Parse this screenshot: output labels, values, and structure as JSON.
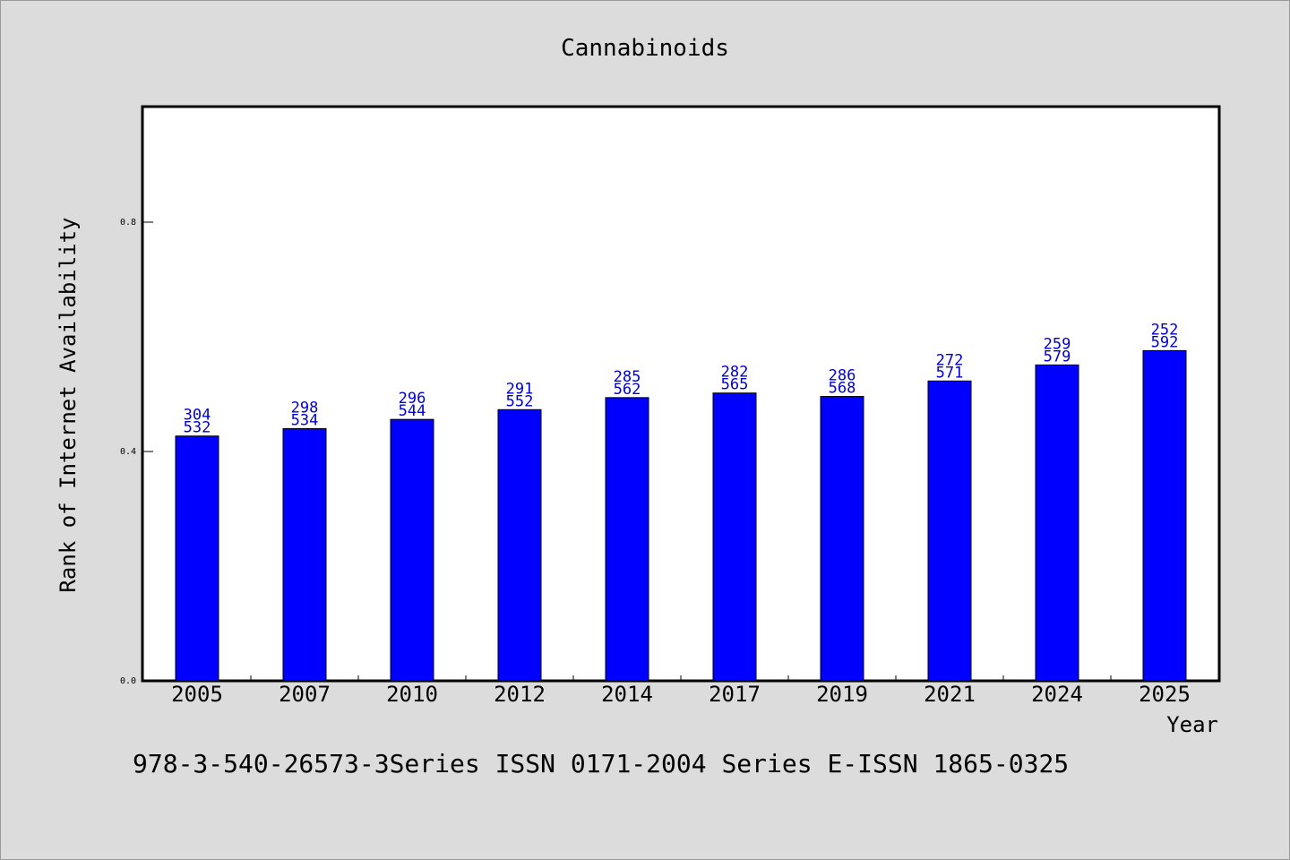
{
  "chart_data": {
    "type": "bar",
    "title": "Cannabinoids",
    "xlabel": "Year",
    "ylabel": "Rank of Internet Availability",
    "categories": [
      "2005",
      "2007",
      "2010",
      "2012",
      "2014",
      "2017",
      "2019",
      "2021",
      "2024",
      "2025"
    ],
    "values": [
      0.427,
      0.44,
      0.456,
      0.473,
      0.494,
      0.502,
      0.496,
      0.523,
      0.551,
      0.576
    ],
    "label_top": [
      "304",
      "298",
      "296",
      "291",
      "285",
      "282",
      "286",
      "272",
      "259",
      "252"
    ],
    "label_bottom": [
      "532",
      "534",
      "544",
      "552",
      "562",
      "565",
      "568",
      "571",
      "579",
      "592"
    ],
    "ylim": [
      0,
      1.0
    ],
    "yticks": [
      "0.0",
      "0.4",
      "0.8"
    ],
    "grid": false,
    "bar_color": "#0000ff",
    "label_color": "#0000cc"
  },
  "footer": "978-3-540-26573-3Series ISSN 0171-2004 Series E-ISSN 1865-0325"
}
